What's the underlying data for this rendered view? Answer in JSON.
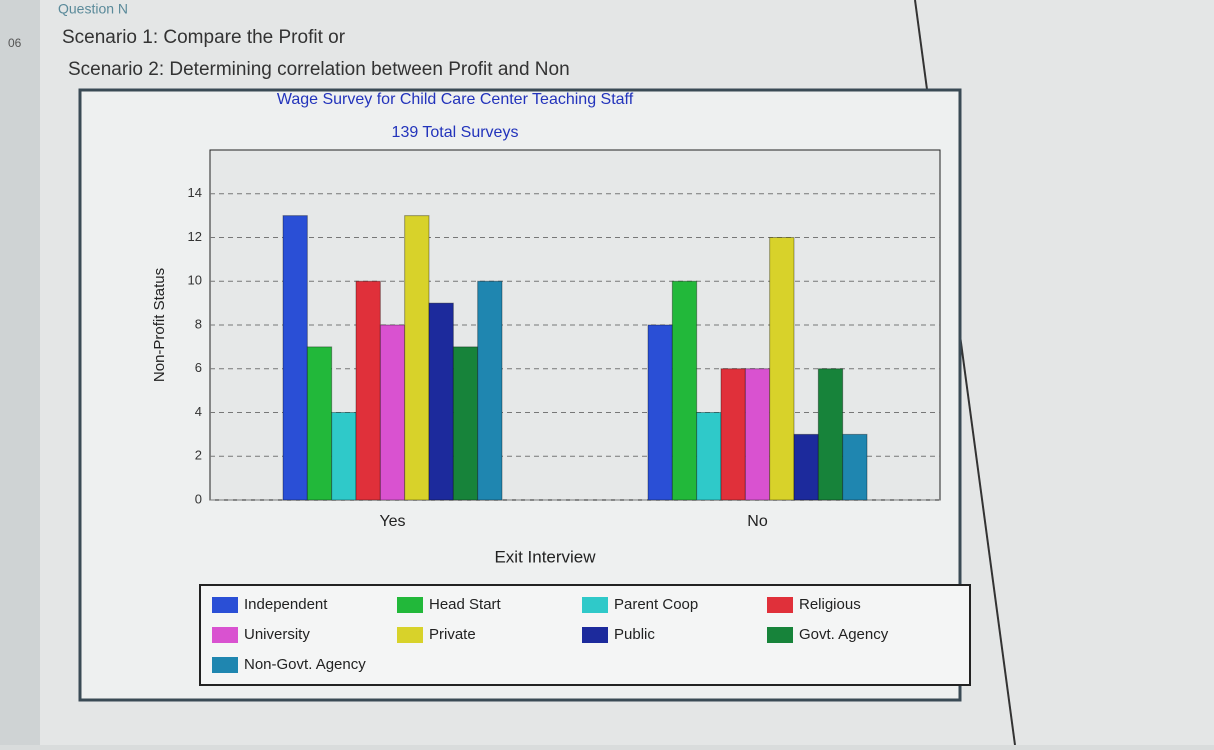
{
  "question_number": "06",
  "question_label": "Question N",
  "scenario_1": "Scenario 1: Compare the Profit or",
  "scenario_2": "Scenario 2: Determining correlation between Profit and Non",
  "chart_data": {
    "type": "bar",
    "title": "Wage Survey for Child Care Center Teaching Staff",
    "subtitle": "139 Total Surveys",
    "x_label": "Exit Interview",
    "y_label": "Non-Profit Status",
    "categories": [
      "Yes",
      "No"
    ],
    "series": [
      {
        "name": "Independent",
        "color": "#2a4fd6",
        "values": [
          13,
          8
        ]
      },
      {
        "name": "Head Start",
        "color": "#22b83a",
        "values": [
          7,
          10
        ]
      },
      {
        "name": "Parent Coop",
        "color": "#2fc9c9",
        "values": [
          4,
          4
        ]
      },
      {
        "name": "Religious",
        "color": "#e0303a",
        "values": [
          10,
          6
        ]
      },
      {
        "name": "University",
        "color": "#d952d0",
        "values": [
          8,
          6
        ]
      },
      {
        "name": "Private",
        "color": "#d8d22a",
        "values": [
          13,
          12
        ]
      },
      {
        "name": "Public",
        "color": "#1c2a9c",
        "values": [
          9,
          3
        ]
      },
      {
        "name": "Govt. Agency",
        "color": "#17833a",
        "values": [
          7,
          6
        ]
      },
      {
        "name": "Non-Govt. Agency",
        "color": "#1f86b0",
        "values": [
          10,
          3
        ]
      }
    ],
    "ylim": [
      0,
      16
    ],
    "yticks": [
      0,
      2,
      4,
      6,
      8,
      10,
      12,
      14
    ],
    "grid": true,
    "legend": "bottom"
  }
}
